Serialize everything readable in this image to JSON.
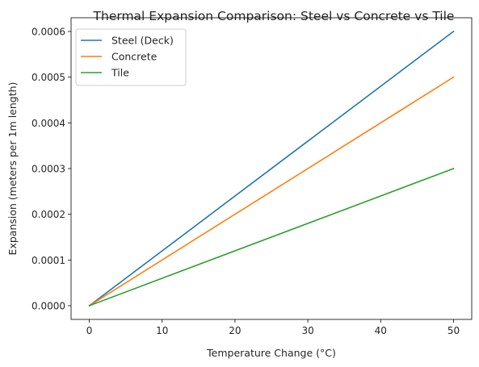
{
  "chart_data": {
    "type": "line",
    "title": "Thermal Expansion Comparison: Steel vs Concrete vs Tile",
    "xlabel": "Temperature Change (°C)",
    "ylabel": "Expansion (meters per 1m length)",
    "xlim": [
      -2.5,
      52.5
    ],
    "ylim": [
      -3e-05,
      0.00063
    ],
    "xticks": [
      0,
      10,
      20,
      30,
      40,
      50
    ],
    "xtick_labels": [
      "0",
      "10",
      "20",
      "30",
      "40",
      "50"
    ],
    "yticks": [
      0,
      0.0001,
      0.0002,
      0.0003,
      0.0004,
      0.0005,
      0.0006
    ],
    "ytick_labels": [
      "0.0000",
      "0.0001",
      "0.0002",
      "0.0003",
      "0.0004",
      "0.0005",
      "0.0006"
    ],
    "grid": false,
    "legend_position": "top-left",
    "x": [
      0,
      50
    ],
    "series": [
      {
        "name": "Steel (Deck)",
        "color": "#1f77b4",
        "values": [
          0,
          0.0006
        ]
      },
      {
        "name": "Concrete",
        "color": "#ff7f0e",
        "values": [
          0,
          0.0005
        ]
      },
      {
        "name": "Tile",
        "color": "#2ca02c",
        "values": [
          0,
          0.0003
        ]
      }
    ]
  }
}
